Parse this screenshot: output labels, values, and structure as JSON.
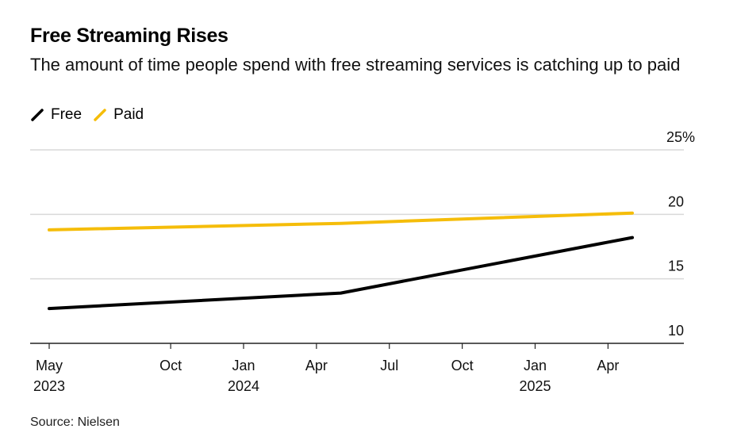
{
  "header": {
    "title": "Free Streaming Rises",
    "subtitle": "The amount of time people spend with free streaming services is catching up to paid"
  },
  "legend": [
    {
      "label": "Free",
      "color": "#000000"
    },
    {
      "label": "Paid",
      "color": "#f5bd0a"
    }
  ],
  "source": "Source: Nielsen",
  "chart_data": {
    "type": "line",
    "title": "Free Streaming Rises",
    "subtitle": "The amount of time people spend with free streaming services is catching up to paid",
    "xlabel": "",
    "ylabel": "",
    "x": [
      "2023-05",
      "2024-05",
      "2025-05"
    ],
    "series": [
      {
        "name": "Free",
        "color": "#000000",
        "values": [
          12.7,
          13.9,
          18.2
        ]
      },
      {
        "name": "Paid",
        "color": "#f5bd0a",
        "values": [
          18.8,
          19.3,
          20.1
        ]
      }
    ],
    "ylim": [
      10,
      25
    ],
    "yticks": [
      {
        "value": 25,
        "label": "25%"
      },
      {
        "value": 20,
        "label": "20"
      },
      {
        "value": 15,
        "label": "15"
      },
      {
        "value": 10,
        "label": "10"
      }
    ],
    "xlim": [
      "2023-04-10",
      "2025-10-05"
    ],
    "xticks": [
      {
        "date": "2023-05",
        "label": "May",
        "year": "2023"
      },
      {
        "date": "2023-10",
        "label": "Oct",
        "year": ""
      },
      {
        "date": "2024-01",
        "label": "Jan",
        "year": "2024"
      },
      {
        "date": "2024-04",
        "label": "Apr",
        "year": ""
      },
      {
        "date": "2024-07",
        "label": "Jul",
        "year": ""
      },
      {
        "date": "2024-10",
        "label": "Oct",
        "year": ""
      },
      {
        "date": "2025-01",
        "label": "Jan",
        "year": "2025"
      },
      {
        "date": "2025-04",
        "label": "Apr",
        "year": ""
      }
    ],
    "grid": true,
    "y_axis_position": "right",
    "legend_position": "top-left",
    "source": "Source: Nielsen"
  }
}
